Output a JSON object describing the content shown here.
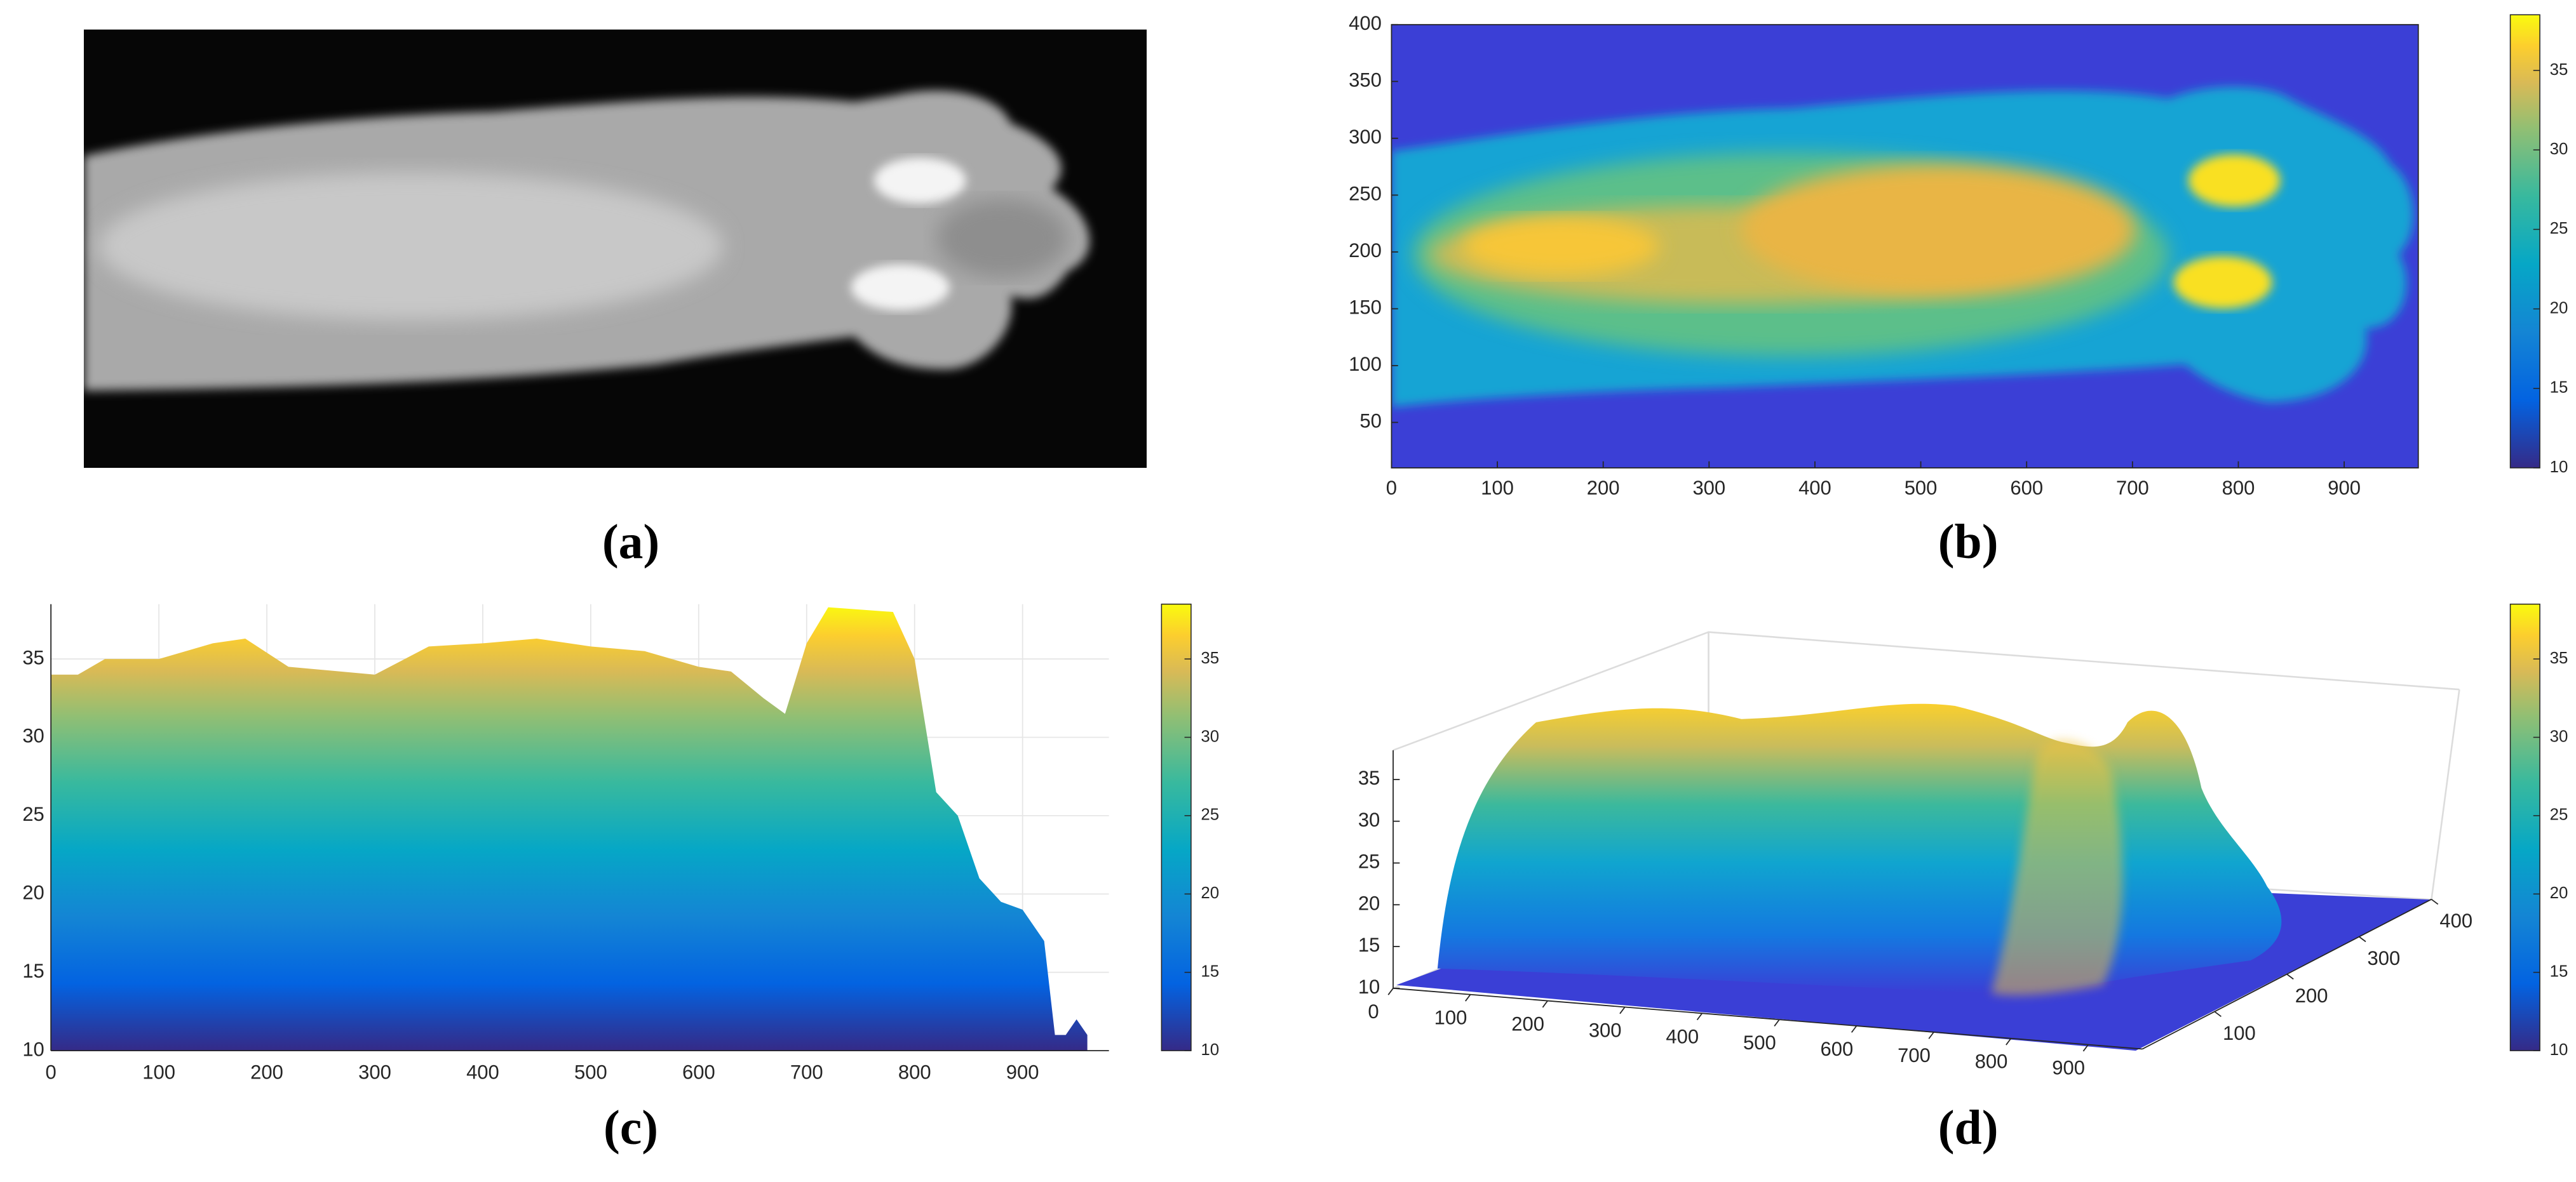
{
  "figure": {
    "panels": [
      {
        "label": "(a)"
      },
      {
        "label": "(b)",
        "xlim": [
          0,
          970
        ],
        "ylim": [
          10,
          400
        ],
        "xticks": [
          0,
          100,
          200,
          300,
          400,
          500,
          600,
          700,
          800,
          900
        ],
        "yticks": [
          50,
          100,
          150,
          200,
          250,
          300,
          350,
          400
        ],
        "colorbar": {
          "lim": [
            10,
            38.5
          ],
          "ticks": [
            10,
            15,
            20,
            25,
            30,
            35
          ]
        }
      },
      {
        "label": "(c)",
        "xlim": [
          0,
          980
        ],
        "ylim": [
          10,
          38.5
        ],
        "xticks": [
          0,
          100,
          200,
          300,
          400,
          500,
          600,
          700,
          800,
          900
        ],
        "yticks": [
          10,
          15,
          20,
          25,
          30,
          35
        ],
        "profile": {
          "x": [
            0,
            25,
            50,
            100,
            150,
            180,
            220,
            300,
            350,
            400,
            450,
            500,
            550,
            600,
            630,
            660,
            680,
            700,
            720,
            780,
            800,
            820,
            840,
            860,
            880,
            900,
            920,
            930,
            940,
            950,
            960
          ],
          "values": [
            34,
            34,
            35,
            35,
            36,
            36.3,
            34.5,
            34,
            35.8,
            36,
            36.3,
            35.8,
            35.5,
            34.5,
            34.2,
            32.5,
            31.5,
            36,
            38.3,
            38,
            35,
            26.5,
            25,
            21,
            19.5,
            19,
            17,
            11,
            11,
            12,
            11
          ]
        },
        "colorbar": {
          "lim": [
            10,
            38.5
          ],
          "ticks": [
            10,
            15,
            20,
            25,
            30,
            35
          ]
        }
      },
      {
        "label": "(d)",
        "xlim": [
          0,
          970
        ],
        "ylim": [
          0,
          400
        ],
        "zlim": [
          10,
          38.5
        ],
        "xticks": [
          0,
          100,
          200,
          300,
          400,
          500,
          600,
          700,
          800,
          900
        ],
        "yticks": [
          100,
          200,
          300,
          400
        ],
        "zticks": [
          10,
          15,
          20,
          25,
          30,
          35
        ],
        "colorbar": {
          "lim": [
            10,
            38.5
          ],
          "ticks": [
            10,
            15,
            20,
            25,
            30,
            35
          ]
        }
      }
    ]
  }
}
